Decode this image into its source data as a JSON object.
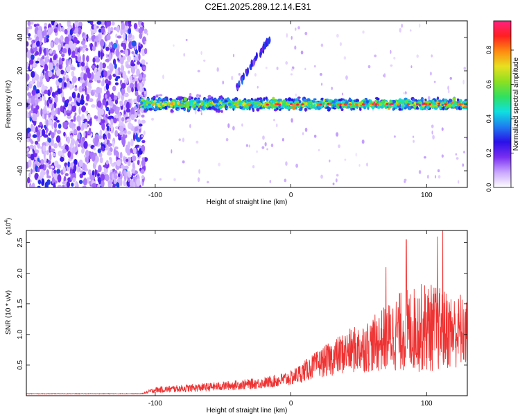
{
  "title": "C2E1.2025.289.12.14.E31",
  "chart_data": [
    {
      "type": "heatmap",
      "title": "C2E1.2025.289.12.14.E31",
      "xlabel": "Height of straight line (km)",
      "ylabel": "Frequency (Hz)",
      "xlim": [
        -195,
        130
      ],
      "ylim": [
        -50,
        50
      ],
      "xticks": [
        -100,
        0,
        100
      ],
      "yticks": [
        -40,
        -20,
        0,
        20,
        40
      ],
      "colorbar": {
        "label": "Normalized spectral amplitude",
        "range": [
          0,
          0.97
        ],
        "ticks": [
          0.0,
          0.2,
          0.4,
          0.6,
          0.8
        ],
        "colors": [
          "#ffffff",
          "#c9a6ff",
          "#7a2ff0",
          "#2a10e8",
          "#1e7cf0",
          "#10e0e0",
          "#30e060",
          "#8de020",
          "#e8e020",
          "#ff8a10",
          "#ff2020",
          "#ff2080"
        ]
      },
      "features": [
        {
          "name": "broadband noise",
          "x_range": [
            -195,
            -110
          ],
          "freq_range": [
            -50,
            50
          ]
        },
        {
          "name": "main signal band",
          "x_range": [
            -110,
            130
          ],
          "center_freq": 0,
          "half_width": 5
        },
        {
          "name": "chirp branch",
          "x_range": [
            -40,
            -15
          ],
          "freq_range": [
            10,
            40
          ]
        }
      ]
    },
    {
      "type": "line",
      "xlabel": "Height of straight line (km)",
      "ylabel": "SNR (10 * v/v)",
      "y_multiplier": "(x10^4)",
      "y_multiplier_base": "(x10",
      "y_multiplier_exp": "4",
      "y_multiplier_close": ")",
      "xlim": [
        -195,
        130
      ],
      "ylim": [
        0,
        2.7
      ],
      "xticks": [
        -100,
        0,
        100
      ],
      "yticks": [
        0.5,
        1.0,
        1.5,
        2.0,
        2.5
      ],
      "color": "#ee3333",
      "envelope": [
        {
          "x": -195,
          "mean": 0.03,
          "spread": 0.01
        },
        {
          "x": -110,
          "mean": 0.03,
          "spread": 0.01
        },
        {
          "x": -100,
          "mean": 0.08,
          "spread": 0.1
        },
        {
          "x": -60,
          "mean": 0.12,
          "spread": 0.14
        },
        {
          "x": -20,
          "mean": 0.18,
          "spread": 0.18
        },
        {
          "x": 0,
          "mean": 0.25,
          "spread": 0.25
        },
        {
          "x": 20,
          "mean": 0.45,
          "spread": 0.45
        },
        {
          "x": 40,
          "mean": 0.6,
          "spread": 0.7
        },
        {
          "x": 60,
          "mean": 0.7,
          "spread": 0.9
        },
        {
          "x": 80,
          "mean": 0.85,
          "spread": 1.3
        },
        {
          "x": 100,
          "mean": 0.9,
          "spread": 1.5
        },
        {
          "x": 130,
          "mean": 0.85,
          "spread": 1.1
        }
      ],
      "peaks": [
        {
          "x": 112,
          "y": 2.7
        },
        {
          "x": 108,
          "y": 2.6
        },
        {
          "x": 85,
          "y": 2.55
        },
        {
          "x": 70,
          "y": 2.1
        },
        {
          "x": 125,
          "y": 1.65
        }
      ]
    }
  ]
}
